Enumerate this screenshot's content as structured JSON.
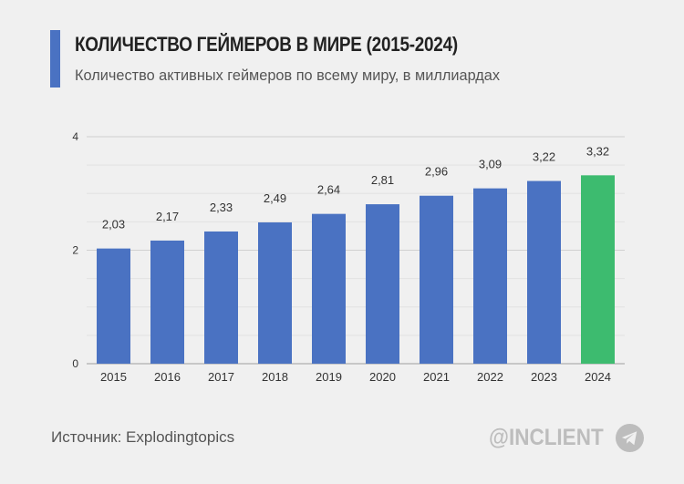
{
  "header": {
    "title": "КОЛИЧЕСТВО ГЕЙМЕРОВ В МИРЕ (2015-2024)",
    "subtitle": "Количество активных геймеров по всему миру, в миллиардах"
  },
  "footer": {
    "source": "Источник: Explodingtopics",
    "brand": "@INCLIENT",
    "brand_icon": "telegram-icon"
  },
  "colors": {
    "accent": "#4a72c2",
    "bar": "#4a72c2",
    "highlight_bar": "#3dbb6f",
    "brand": "#bdbdbd"
  },
  "chart_data": {
    "type": "bar",
    "categories": [
      "2015",
      "2016",
      "2017",
      "2018",
      "2019",
      "2020",
      "2021",
      "2022",
      "2023",
      "2024"
    ],
    "values": [
      2.03,
      2.17,
      2.33,
      2.49,
      2.64,
      2.81,
      2.96,
      3.09,
      3.22,
      3.32
    ],
    "data_labels": [
      "2,03",
      "2,17",
      "2,33",
      "2,49",
      "2,64",
      "2,81",
      "2,96",
      "3,09",
      "3,22",
      "3,32"
    ],
    "highlight_category": "2024",
    "ylim": [
      0,
      4
    ],
    "yticks": [
      "0",
      "2",
      "4"
    ],
    "ytick_values": [
      0,
      2,
      4
    ],
    "grid": true,
    "legend": "none"
  }
}
